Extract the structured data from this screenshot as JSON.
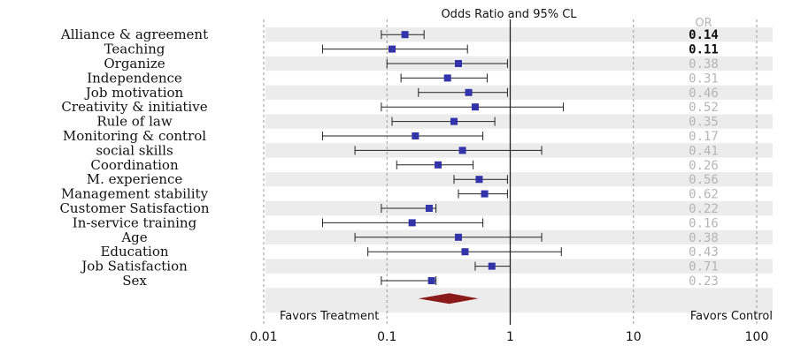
{
  "chart_data": {
    "type": "forest",
    "title": "Odds Ratio and 95% CL",
    "or_column_header": "OR",
    "x_scale": "log",
    "xlim": [
      0.01,
      100
    ],
    "x_ticks": [
      {
        "value": 0.01,
        "label": "0.01"
      },
      {
        "value": 0.1,
        "label": "0.1"
      },
      {
        "value": 1,
        "label": "1"
      },
      {
        "value": 10,
        "label": "10"
      },
      {
        "value": 100,
        "label": "100"
      }
    ],
    "favors_left": "Favors Treatment",
    "favors_right": "Favors Control",
    "reference_value": 1,
    "point_color": "#3333aa",
    "summary_color": "#8b1a1a",
    "rows": [
      {
        "label": "Alliance & agreement",
        "or": 0.14,
        "or_text": "0.14",
        "lo": 0.09,
        "hi": 0.2,
        "emphasis": true
      },
      {
        "label": "Teaching",
        "or": 0.11,
        "or_text": "0.11",
        "lo": 0.03,
        "hi": 0.45,
        "emphasis": true
      },
      {
        "label": "Organize",
        "or": 0.38,
        "or_text": "0.38",
        "lo": 0.1,
        "hi": 0.95,
        "emphasis": false
      },
      {
        "label": "Independence",
        "or": 0.31,
        "or_text": "0.31",
        "lo": 0.13,
        "hi": 0.65,
        "emphasis": false
      },
      {
        "label": "Job motivation",
        "or": 0.46,
        "or_text": "0.46",
        "lo": 0.18,
        "hi": 0.95,
        "emphasis": false
      },
      {
        "label": "Creativity & initiative",
        "or": 0.52,
        "or_text": "0.52",
        "lo": 0.09,
        "hi": 2.7,
        "emphasis": false
      },
      {
        "label": "Rule of law",
        "or": 0.35,
        "or_text": "0.35",
        "lo": 0.11,
        "hi": 0.75,
        "emphasis": false
      },
      {
        "label": "Monitoring & control",
        "or": 0.17,
        "or_text": "0.17",
        "lo": 0.03,
        "hi": 0.6,
        "emphasis": false
      },
      {
        "label": "social skills",
        "or": 0.41,
        "or_text": "0.41",
        "lo": 0.055,
        "hi": 1.8,
        "emphasis": false
      },
      {
        "label": "Coordination",
        "or": 0.26,
        "or_text": "0.26",
        "lo": 0.12,
        "hi": 0.5,
        "emphasis": false
      },
      {
        "label": "M. experience",
        "or": 0.56,
        "or_text": "0.56",
        "lo": 0.35,
        "hi": 0.95,
        "emphasis": false
      },
      {
        "label": "Management stability",
        "or": 0.62,
        "or_text": "0.62",
        "lo": 0.38,
        "hi": 0.95,
        "emphasis": false
      },
      {
        "label": "Customer Satisfaction",
        "or": 0.22,
        "or_text": "0.22",
        "lo": 0.09,
        "hi": 0.25,
        "emphasis": false
      },
      {
        "label": "In-service training",
        "or": 0.16,
        "or_text": "0.16",
        "lo": 0.03,
        "hi": 0.6,
        "emphasis": false
      },
      {
        "label": "Age",
        "or": 0.38,
        "or_text": "0.38",
        "lo": 0.055,
        "hi": 1.8,
        "emphasis": false
      },
      {
        "label": "Education",
        "or": 0.43,
        "or_text": "0.43",
        "lo": 0.07,
        "hi": 2.6,
        "emphasis": false
      },
      {
        "label": "Job Satisfaction",
        "or": 0.71,
        "or_text": "0.71",
        "lo": 0.52,
        "hi": 1.0,
        "emphasis": false
      },
      {
        "label": "Sex",
        "or": 0.23,
        "or_text": "0.23",
        "lo": 0.09,
        "hi": 0.25,
        "emphasis": false
      }
    ],
    "summary": {
      "or": 0.32,
      "lo": 0.18,
      "hi": 0.55
    }
  }
}
